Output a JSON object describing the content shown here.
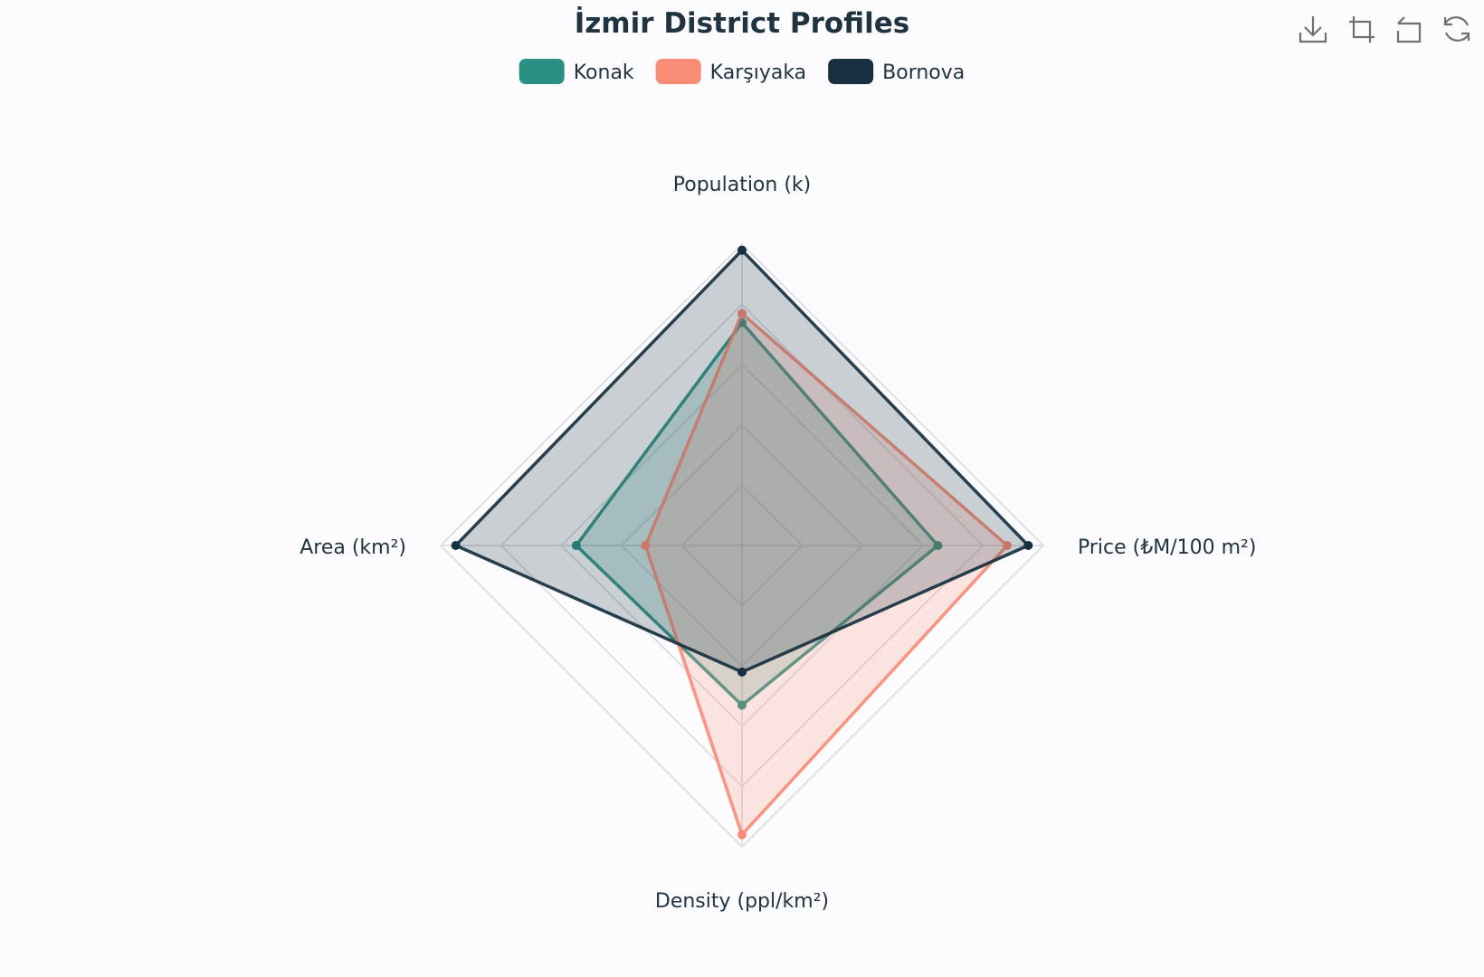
{
  "chart_data": {
    "type": "radar",
    "title": "İzmir District Profiles",
    "indicators": [
      {
        "name": "Population (k)",
        "max": 100
      },
      {
        "name": "Price (₺M/100 m²)",
        "max": 100
      },
      {
        "name": "Density (ppl/km²)",
        "max": 100
      },
      {
        "name": "Area (km²)",
        "max": 100
      }
    ],
    "split_number": 5,
    "series": [
      {
        "name": "Konak",
        "values": [
          74,
          65,
          53,
          55
        ],
        "color": "#2a9083"
      },
      {
        "name": "Karşıyaka",
        "values": [
          77,
          88,
          96,
          32
        ],
        "color": "#f98c76"
      },
      {
        "name": "Bornova",
        "values": [
          98,
          95,
          42,
          95
        ],
        "color": "#17303f"
      }
    ],
    "legend_position": "top-center",
    "colors": {
      "background": "#fcfbfd",
      "text": "#1f3340",
      "grid": "#dfdfe6",
      "toolbar_icon": "#707070"
    }
  },
  "toolbar": {
    "icons": [
      "download-icon",
      "crop-icon",
      "undo-icon",
      "refresh-icon"
    ]
  }
}
